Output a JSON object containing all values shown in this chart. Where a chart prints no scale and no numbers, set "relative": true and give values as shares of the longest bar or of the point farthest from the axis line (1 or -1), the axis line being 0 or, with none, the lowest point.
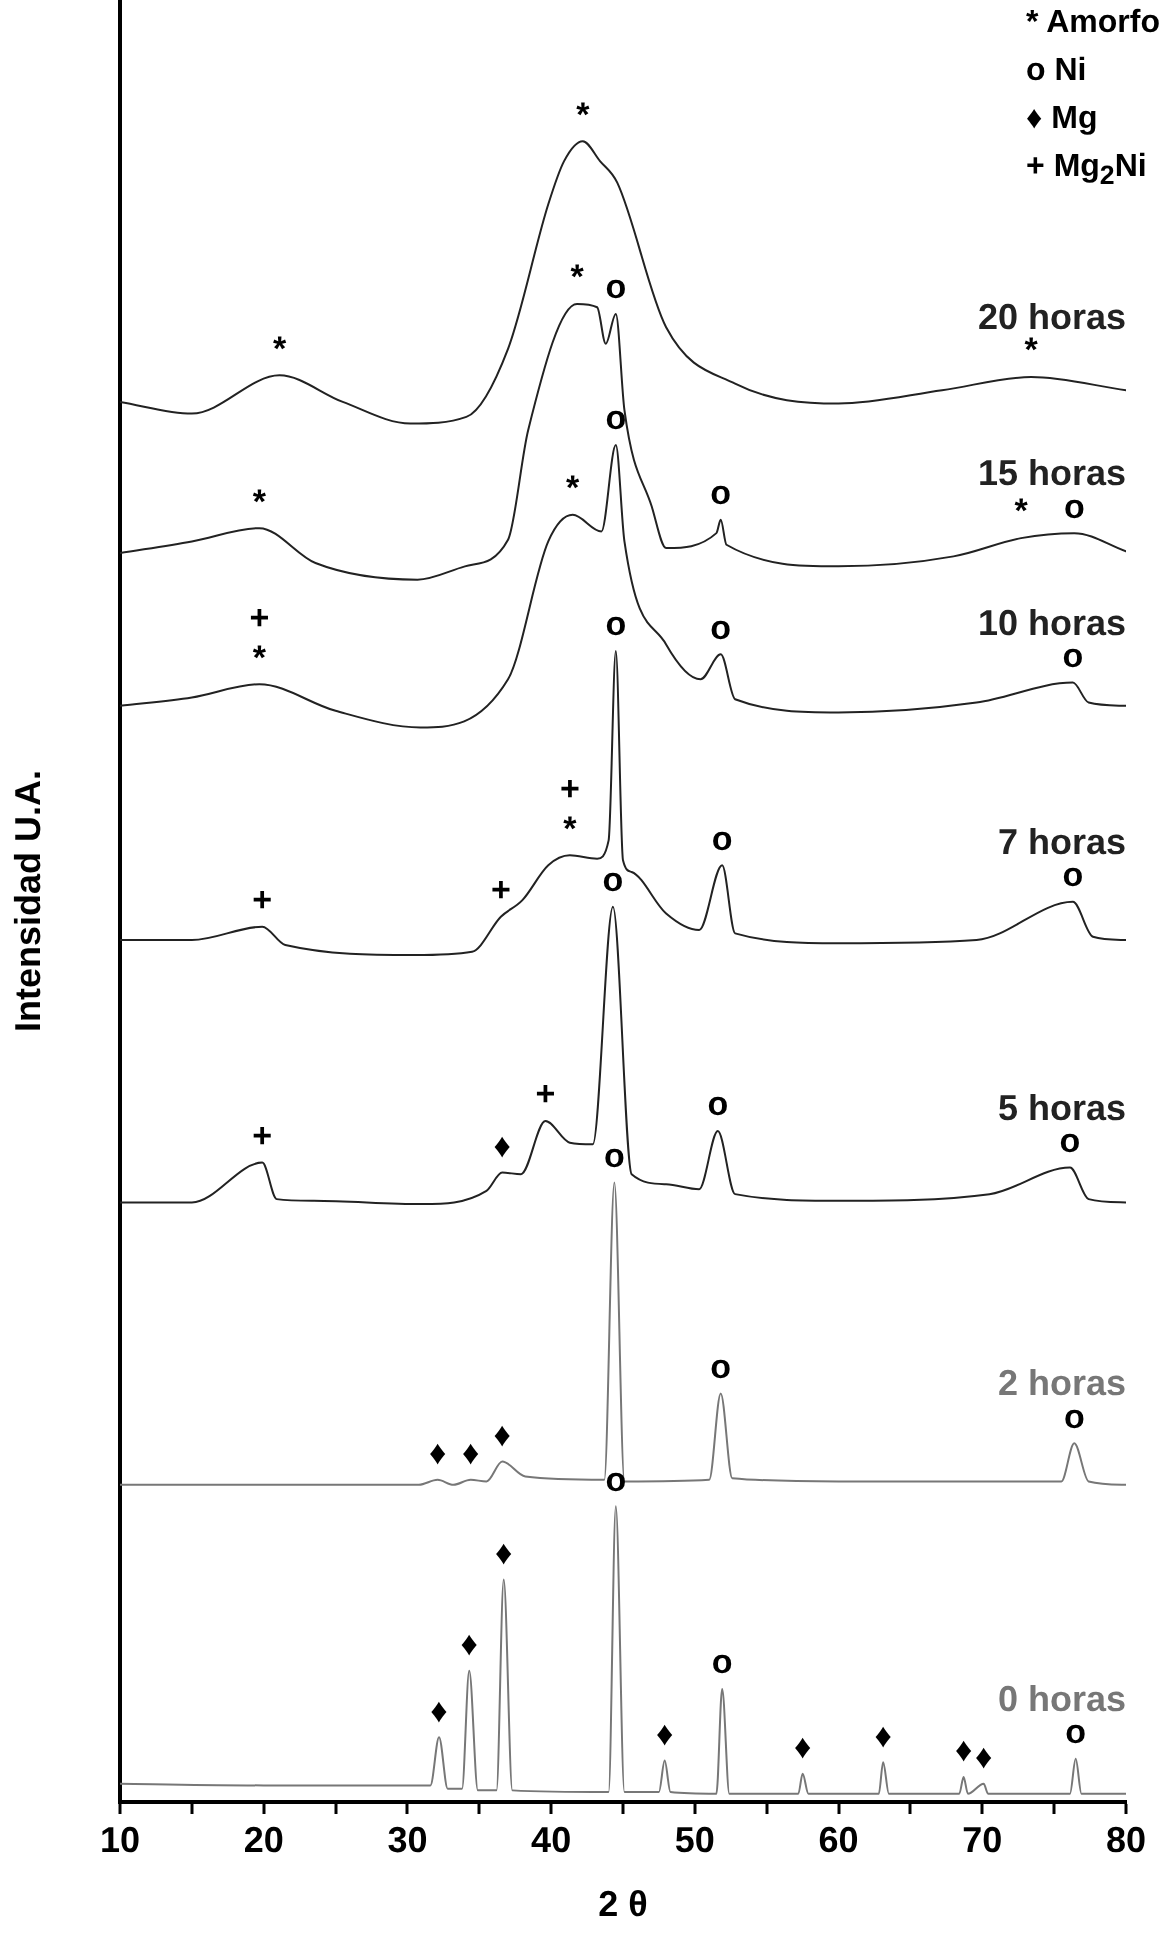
{
  "chart_data": {
    "type": "line",
    "xlabel": "2 θ",
    "ylabel": "Intensidad U.A.",
    "relative": true,
    "tick_labels": "x",
    "legend": false,
    "grid": false,
    "xlim": [
      10,
      80
    ],
    "xticks": [
      10,
      {
        "value": 15,
        "label": null
      },
      20,
      {
        "value": 25,
        "label": null
      },
      30,
      {
        "value": 35,
        "label": null
      },
      40,
      {
        "value": 45,
        "label": null
      },
      50,
      {
        "value": 55,
        "label": null
      },
      60,
      {
        "value": 65,
        "label": null
      },
      70,
      {
        "value": 75,
        "label": null
      },
      80
    ],
    "series": [
      {
        "name": "20 horas",
        "color": "#222222",
        "x": [
          10,
          15,
          21.1,
          25.5,
          30.2,
          34.1,
          37.0,
          39.8,
          40.9,
          42.2,
          43.4,
          44.6,
          48.0,
          52.8,
          60.0,
          67.2,
          73.4,
          80
        ],
        "values": [
          0.843,
          0.836,
          0.859,
          0.843,
          0.83,
          0.834,
          0.875,
          0.962,
          0.988,
          1,
          0.988,
          0.975,
          0.888,
          0.854,
          0.842,
          0.85,
          0.858,
          0.85
        ]
      },
      {
        "name": "15 horas",
        "color": "#222222",
        "x": [
          10,
          15,
          19.7,
          23.6,
          30.7,
          34.0,
          37.0,
          38.4,
          41.8,
          43.2,
          43.8,
          44.5,
          45.1,
          47.0,
          48.0,
          51.5,
          51.8,
          52.2,
          60,
          68,
          72.7,
          76.4,
          80
        ],
        "values": [
          0.752,
          0.759,
          0.767,
          0.746,
          0.736,
          0.744,
          0.76,
          0.826,
          0.902,
          0.9,
          0.878,
          0.896,
          0.838,
          0.78,
          0.755,
          0.764,
          0.772,
          0.757,
          0.744,
          0.75,
          0.761,
          0.764,
          0.753
        ]
      },
      {
        "name": "10 horas",
        "color": "#222222",
        "x": [
          10,
          15,
          19.7,
          25,
          30.9,
          37.0,
          39.8,
          41.5,
          43.5,
          44.5,
          45.1,
          48.0,
          50.4,
          51.8,
          52.8,
          60.0,
          69.6,
          76.3,
          77.4,
          80
        ],
        "values": [
          0.66,
          0.665,
          0.673,
          0.657,
          0.647,
          0.676,
          0.759,
          0.775,
          0.765,
          0.817,
          0.759,
          0.697,
          0.676,
          0.691,
          0.664,
          0.656,
          0.662,
          0.674,
          0.662,
          0.66
        ]
      },
      {
        "name": "7 horas",
        "color": "#222222",
        "x": [
          10,
          15,
          19.9,
          21.5,
          30.5,
          34.5,
          36.5,
          38.0,
          39.8,
          41.3,
          43.2,
          44.0,
          44.5,
          45.0,
          45.6,
          48.0,
          50.3,
          51.9,
          52.8,
          60.0,
          69.6,
          76.3,
          77.7,
          80
        ],
        "values": [
          0.519,
          0.519,
          0.527,
          0.516,
          0.51,
          0.512,
          0.533,
          0.543,
          0.564,
          0.57,
          0.568,
          0.579,
          0.693,
          0.567,
          0.56,
          0.535,
          0.525,
          0.564,
          0.523,
          0.517,
          0.519,
          0.542,
          0.521,
          0.519
        ]
      },
      {
        "name": "5 horas",
        "color": "#222222",
        "x": [
          10,
          15,
          19.9,
          20.9,
          23.5,
          31,
          35.5,
          36.6,
          37.9,
          39.6,
          41.3,
          42.9,
          44.3,
          45.6,
          48.0,
          50.3,
          51.6,
          52.8,
          60,
          70.5,
          76.1,
          77.4,
          80
        ],
        "values": [
          0.361,
          0.361,
          0.385,
          0.363,
          0.362,
          0.36,
          0.368,
          0.379,
          0.378,
          0.41,
          0.397,
          0.396,
          0.539,
          0.378,
          0.372,
          0.369,
          0.404,
          0.366,
          0.362,
          0.366,
          0.382,
          0.363,
          0.361
        ]
      },
      {
        "name": "2 horas",
        "color": "#777777",
        "x": [
          10,
          25,
          30.8,
          32.1,
          33.2,
          34.4,
          35.5,
          36.6,
          38.2,
          43.7,
          44.4,
          45.1,
          51.0,
          51.8,
          52.6,
          60,
          75.5,
          76.4,
          77.4,
          80
        ],
        "values": [
          0.191,
          0.191,
          0.191,
          0.194,
          0.191,
          0.194,
          0.193,
          0.205,
          0.196,
          0.194,
          0.373,
          0.193,
          0.194,
          0.246,
          0.195,
          0.193,
          0.193,
          0.216,
          0.193,
          0.191
        ]
      },
      {
        "name": "0 horas",
        "color": "#777777",
        "x": [
          10,
          20,
          31.6,
          32.2,
          32.8,
          33.8,
          34.3,
          34.9,
          36.2,
          36.7,
          37.3,
          44.0,
          44.5,
          45.1,
          47.5,
          47.9,
          48.3,
          51.5,
          51.9,
          52.4,
          57.2,
          57.5,
          57.9,
          62.8,
          63.1,
          63.5,
          68.4,
          68.7,
          69.0,
          70.1,
          70.4,
          76.1,
          76.5,
          76.9,
          80
        ],
        "values": [
          0.011,
          0.01,
          0.01,
          0.039,
          0.008,
          0.008,
          0.079,
          0.007,
          0.007,
          0.134,
          0.007,
          0.006,
          0.178,
          0.006,
          0.006,
          0.025,
          0.006,
          0.005,
          0.068,
          0.005,
          0.005,
          0.017,
          0.005,
          0.005,
          0.024,
          0.005,
          0.005,
          0.015,
          0.005,
          0.011,
          0.005,
          0.005,
          0.026,
          0.005,
          0.005
        ]
      }
    ],
    "annotations": [
      "* Amorfo",
      "o Ni",
      "♦ Mg",
      "+ Mg$_{2}$Ni",
      {
        "text": "*",
        "x": 21.1,
        "y": 0.859
      },
      {
        "text": "*",
        "x": 42.2,
        "y": 1
      },
      {
        "text": "*",
        "x": 73.4,
        "y": 0.858
      },
      {
        "text": "*",
        "x": 19.7,
        "y": 0.767
      },
      {
        "text": "*",
        "x": 41.8,
        "y": 0.902
      },
      {
        "text": "o",
        "x": 44.5,
        "y": 0.896
      },
      {
        "text": "o",
        "x": 51.8,
        "y": 0.772
      },
      {
        "text": "*",
        "x": 72.7,
        "y": 0.761
      },
      {
        "text": "o",
        "x": 76.4,
        "y": 0.764
      },
      {
        "text": "*",
        "x": 19.7,
        "y": 0.673
      },
      {
        "text": "+",
        "x": 19.7,
        "y": 0.673
      },
      {
        "text": "*",
        "x": 41.5,
        "y": 0.775
      },
      {
        "text": "o",
        "x": 44.5,
        "y": 0.817
      },
      {
        "text": "o",
        "x": 51.8,
        "y": 0.691
      },
      {
        "text": "o",
        "x": 76.3,
        "y": 0.674
      },
      {
        "text": "+",
        "x": 19.9,
        "y": 0.527
      },
      {
        "text": "+",
        "x": 36.5,
        "y": 0.533
      },
      {
        "text": "*",
        "x": 41.3,
        "y": 0.57
      },
      {
        "text": "+",
        "x": 41.3,
        "y": 0.57
      },
      {
        "text": "o",
        "x": 44.5,
        "y": 0.693
      },
      {
        "text": "o",
        "x": 51.9,
        "y": 0.564
      },
      {
        "text": "o",
        "x": 76.3,
        "y": 0.542
      },
      {
        "text": "+",
        "x": 19.9,
        "y": 0.385
      },
      {
        "text": "♦",
        "x": 36.6,
        "y": 0.379
      },
      {
        "text": "+",
        "x": 39.6,
        "y": 0.41
      },
      {
        "text": "o",
        "x": 44.3,
        "y": 0.539
      },
      {
        "text": "o",
        "x": 51.6,
        "y": 0.404
      },
      {
        "text": "o",
        "x": 76.1,
        "y": 0.382
      },
      {
        "text": "♦",
        "x": 32.1,
        "y": 0.194
      },
      {
        "text": "♦",
        "x": 34.4,
        "y": 0.194
      },
      {
        "text": "♦",
        "x": 36.6,
        "y": 0.205
      },
      {
        "text": "o",
        "x": 44.4,
        "y": 0.373
      },
      {
        "text": "o",
        "x": 51.8,
        "y": 0.246
      },
      {
        "text": "o",
        "x": 76.4,
        "y": 0.216
      },
      {
        "text": "♦",
        "x": 32.2,
        "y": 0.039
      },
      {
        "text": "♦",
        "x": 34.3,
        "y": 0.079
      },
      {
        "text": "♦",
        "x": 36.7,
        "y": 0.134
      },
      {
        "text": "o",
        "x": 44.5,
        "y": 0.178
      },
      {
        "text": "♦",
        "x": 47.9,
        "y": 0.025
      },
      {
        "text": "o",
        "x": 51.9,
        "y": 0.068
      },
      {
        "text": "♦",
        "x": 57.5,
        "y": 0.017
      },
      {
        "text": "♦",
        "x": 63.1,
        "y": 0.024
      },
      {
        "text": "♦",
        "x": 68.7,
        "y": 0.015
      },
      {
        "text": "♦",
        "x": 70.1,
        "y": 0.011
      },
      {
        "text": "o",
        "x": 76.5,
        "y": 0.026
      }
    ]
  }
}
